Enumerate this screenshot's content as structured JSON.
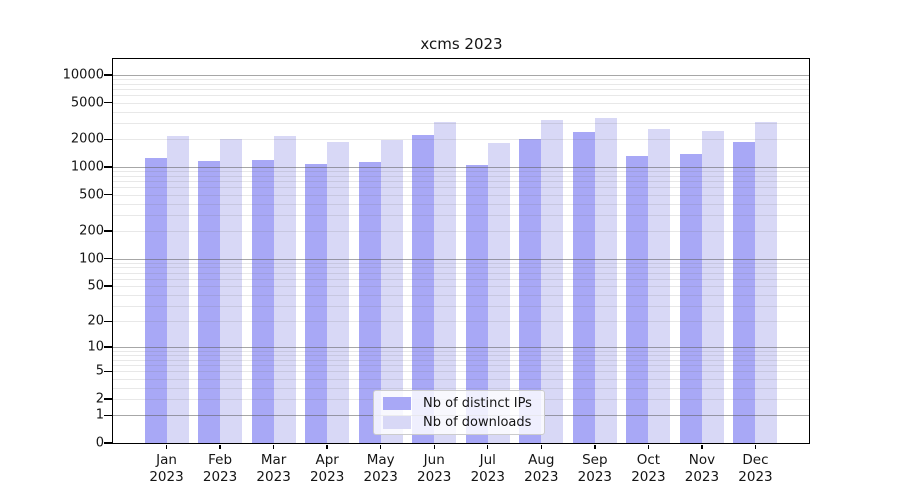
{
  "title": "xcms 2023",
  "chart_data": {
    "type": "bar",
    "title": "xcms 2023",
    "categories": [
      "Jan",
      "Feb",
      "Mar",
      "Apr",
      "May",
      "Jun",
      "Jul",
      "Aug",
      "Sep",
      "Oct",
      "Nov",
      "Dec"
    ],
    "x_tick_second_line": "2023",
    "series": [
      {
        "name": "Nb of distinct IPs",
        "color": "#a8a8f6",
        "values": [
          1245,
          1170,
          1200,
          1080,
          1125,
          2230,
          1050,
          2000,
          2380,
          1330,
          1385,
          1885
        ]
      },
      {
        "name": "Nb of downloads",
        "color": "#d8d8f6",
        "values": [
          2170,
          2015,
          2190,
          1870,
          1960,
          3105,
          1810,
          3240,
          3380,
          2590,
          2480,
          3105
        ]
      }
    ],
    "yscale": "log1p",
    "ylim": [
      0,
      14000
    ],
    "y_ticks": [
      10000,
      5000,
      2000,
      1000,
      500,
      200,
      100,
      50,
      20,
      10,
      5,
      2,
      1,
      0
    ],
    "y_major_gridlines": [
      1,
      10,
      100,
      1000,
      10000
    ],
    "grid": true,
    "legend_position": "bottom-center"
  }
}
